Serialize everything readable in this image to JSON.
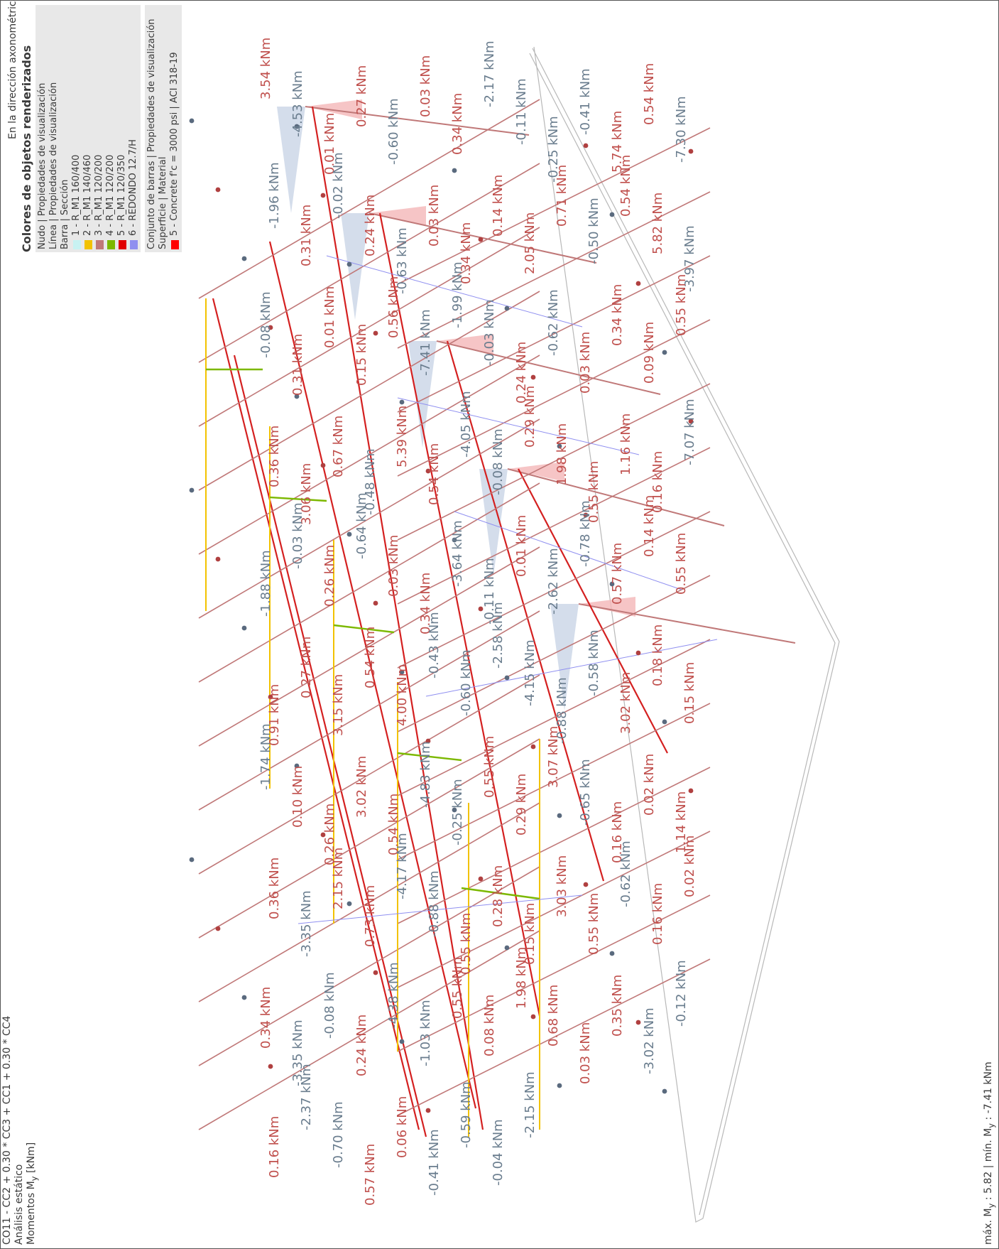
{
  "header": {
    "combination": "CO11 - CC2 + 0.30 * CC3 + CC1 + 0.30 * CC4",
    "analysis": "Análisis estático",
    "result": "Momentos M",
    "result_sub": "y",
    "result_unit": " [kNm]"
  },
  "view_caption": "En la dirección axonométrica",
  "summary": {
    "max_label": "máx. M",
    "sub": "y",
    "max_value": " : 5.82 | mín. M",
    "sub2": "y",
    "min_value": " : -7.41 kNm"
  },
  "legend": {
    "title": "Colores de objetos renderizados",
    "nudo": "Nudo | Propiedades de visualización",
    "linea": "Línea | Propiedades de visualización",
    "barra": "Barra | Sección",
    "sections": [
      {
        "label": "1 - R_M1 160/400",
        "color": "#c8f2f2"
      },
      {
        "label": "2 - R_M1 140/460",
        "color": "#f2c200"
      },
      {
        "label": "3 - R_M1 120/200",
        "color": "#c07878"
      },
      {
        "label": "4 - R_M1 120/200",
        "color": "#7cb800"
      },
      {
        "label": "5 - R_M1 120/350",
        "color": "#e00000"
      },
      {
        "label": "6 - REDONDO 12.7/H",
        "color": "#8f8ff0"
      }
    ],
    "conjunto": "Conjunto de barras | Propiedades de visualización",
    "superficie": "Superficie | Material",
    "materials": [
      {
        "label": "5 - Concrete f'c = 3000 psi | ACI 318-19",
        "color": "#ff0000"
      }
    ]
  },
  "colors": {
    "positive": "#c0504d",
    "negative": "#6a7d8e",
    "pos_fill": "#f4b6b8",
    "neg_fill": "#c9d4e6"
  },
  "labels": [
    {
      "text": "3.54 kNm",
      "sign": "pos"
    },
    {
      "text": "-4.53 kNm",
      "sign": "neg"
    },
    {
      "text": "0.01 kNm",
      "sign": "pos"
    },
    {
      "text": "0.27 kNm",
      "sign": "pos"
    },
    {
      "text": "-0.60 kNm",
      "sign": "neg"
    },
    {
      "text": "0.03 kNm",
      "sign": "pos"
    },
    {
      "text": "0.34 kNm",
      "sign": "pos"
    },
    {
      "text": "-2.17 kNm",
      "sign": "neg"
    },
    {
      "text": "-0.11 kNm",
      "sign": "neg"
    },
    {
      "text": "-0.25 kNm",
      "sign": "neg"
    },
    {
      "text": "-0.41 kNm",
      "sign": "neg"
    },
    {
      "text": "5.74 kNm",
      "sign": "pos"
    },
    {
      "text": "0.54 kNm",
      "sign": "pos"
    },
    {
      "text": "-7.30 kNm",
      "sign": "neg"
    },
    {
      "text": "-1.96 kNm",
      "sign": "neg"
    },
    {
      "text": "0.31 kNm",
      "sign": "pos"
    },
    {
      "text": "-0.02 kNm",
      "sign": "neg"
    },
    {
      "text": "0.24 kNm",
      "sign": "pos"
    },
    {
      "text": "-0.63 kNm",
      "sign": "neg"
    },
    {
      "text": "0.03 kNm",
      "sign": "pos"
    },
    {
      "text": "0.34 kNm",
      "sign": "pos"
    },
    {
      "text": "0.14 kNm",
      "sign": "pos"
    },
    {
      "text": "2.05 kNm",
      "sign": "pos"
    },
    {
      "text": "0.71 kNm",
      "sign": "pos"
    },
    {
      "text": "-0.50 kNm",
      "sign": "neg"
    },
    {
      "text": "0.54 kNm",
      "sign": "pos"
    },
    {
      "text": "5.82 kNm",
      "sign": "pos"
    },
    {
      "text": "-3.97 kNm",
      "sign": "neg"
    },
    {
      "text": "-0.08 kNm",
      "sign": "neg"
    },
    {
      "text": "0.31 kNm",
      "sign": "pos"
    },
    {
      "text": "0.01 kNm",
      "sign": "pos"
    },
    {
      "text": "0.15 kNm",
      "sign": "pos"
    },
    {
      "text": "0.56 kNm",
      "sign": "pos"
    },
    {
      "text": "-7.41 kNm",
      "sign": "neg"
    },
    {
      "text": "-1.99 kNm",
      "sign": "neg"
    },
    {
      "text": "-0.03 kNm",
      "sign": "neg"
    },
    {
      "text": "0.24 kNm",
      "sign": "pos"
    },
    {
      "text": "-0.62 kNm",
      "sign": "neg"
    },
    {
      "text": "0.03 kNm",
      "sign": "pos"
    },
    {
      "text": "0.34 kNm",
      "sign": "pos"
    },
    {
      "text": "0.09 kNm",
      "sign": "pos"
    },
    {
      "text": "0.55 kNm",
      "sign": "pos"
    },
    {
      "text": "0.36 kNm",
      "sign": "pos"
    },
    {
      "text": "3.06 kNm",
      "sign": "pos"
    },
    {
      "text": "0.67 kNm",
      "sign": "pos"
    },
    {
      "text": "-0.48 kNm",
      "sign": "neg"
    },
    {
      "text": "5.39 kNm",
      "sign": "pos"
    },
    {
      "text": "0.54 kNm",
      "sign": "pos"
    },
    {
      "text": "-4.05 kNm",
      "sign": "neg"
    },
    {
      "text": "-0.08 kNm",
      "sign": "neg"
    },
    {
      "text": "0.29 kNm",
      "sign": "pos"
    },
    {
      "text": "1.98 kNm",
      "sign": "pos"
    },
    {
      "text": "0.55 kNm",
      "sign": "pos"
    },
    {
      "text": "1.16 kNm",
      "sign": "pos"
    },
    {
      "text": "0.16 kNm",
      "sign": "pos"
    },
    {
      "text": "-7.07 kNm",
      "sign": "neg"
    },
    {
      "text": "-1.88 kNm",
      "sign": "neg"
    },
    {
      "text": "-0.03 kNm",
      "sign": "neg"
    },
    {
      "text": "0.26 kNm",
      "sign": "pos"
    },
    {
      "text": "-0.64 kNm",
      "sign": "neg"
    },
    {
      "text": "0.03 kNm",
      "sign": "pos"
    },
    {
      "text": "0.34 kNm",
      "sign": "pos"
    },
    {
      "text": "-3.64 kNm",
      "sign": "neg"
    },
    {
      "text": "-0.11 kNm",
      "sign": "neg"
    },
    {
      "text": "0.01 kNm",
      "sign": "pos"
    },
    {
      "text": "-2.62 kNm",
      "sign": "neg"
    },
    {
      "text": "-0.78 kNm",
      "sign": "neg"
    },
    {
      "text": "0.57 kNm",
      "sign": "pos"
    },
    {
      "text": "0.14 kNm",
      "sign": "pos"
    },
    {
      "text": "0.55 kNm",
      "sign": "pos"
    },
    {
      "text": "0.91 kNm",
      "sign": "pos"
    },
    {
      "text": "0.27 kNm",
      "sign": "pos"
    },
    {
      "text": "3.15 kNm",
      "sign": "pos"
    },
    {
      "text": "0.54 kNm",
      "sign": "pos"
    },
    {
      "text": "4.00 kNm",
      "sign": "pos"
    },
    {
      "text": "-0.43 kNm",
      "sign": "neg"
    },
    {
      "text": "-0.60 kNm",
      "sign": "neg"
    },
    {
      "text": "-2.58 kNm",
      "sign": "neg"
    },
    {
      "text": "-4.15 kNm",
      "sign": "neg"
    },
    {
      "text": "-0.88 kNm",
      "sign": "neg"
    },
    {
      "text": "-0.58 kNm",
      "sign": "neg"
    },
    {
      "text": "3.02 kNm",
      "sign": "pos"
    },
    {
      "text": "0.18 kNm",
      "sign": "pos"
    },
    {
      "text": "0.15 kNm",
      "sign": "pos"
    },
    {
      "text": "-1.74 kNm",
      "sign": "neg"
    },
    {
      "text": "0.10 kNm",
      "sign": "pos"
    },
    {
      "text": "0.26 kNm",
      "sign": "pos"
    },
    {
      "text": "3.02 kNm",
      "sign": "pos"
    },
    {
      "text": "0.54 kNm",
      "sign": "pos"
    },
    {
      "text": "-4.83 kNm",
      "sign": "neg"
    },
    {
      "text": "-0.25 kNm",
      "sign": "neg"
    },
    {
      "text": "0.55 kNm",
      "sign": "pos"
    },
    {
      "text": "0.29 kNm",
      "sign": "pos"
    },
    {
      "text": "3.07 kNm",
      "sign": "pos"
    },
    {
      "text": "-0.65 kNm",
      "sign": "neg"
    },
    {
      "text": "0.16 kNm",
      "sign": "pos"
    },
    {
      "text": "0.02 kNm",
      "sign": "pos"
    },
    {
      "text": "1.14 kNm",
      "sign": "pos"
    },
    {
      "text": "0.36 kNm",
      "sign": "pos"
    },
    {
      "text": "-3.35 kNm",
      "sign": "neg"
    },
    {
      "text": "2.15 kNm",
      "sign": "pos"
    },
    {
      "text": "0.73 kNm",
      "sign": "pos"
    },
    {
      "text": "-4.17 kNm",
      "sign": "neg"
    },
    {
      "text": "-0.88 kNm",
      "sign": "neg"
    },
    {
      "text": "0.55 kNm",
      "sign": "pos"
    },
    {
      "text": "0.28 kNm",
      "sign": "pos"
    },
    {
      "text": "0.15 kNm",
      "sign": "pos"
    },
    {
      "text": "3.03 kNm",
      "sign": "pos"
    },
    {
      "text": "0.55 kNm",
      "sign": "pos"
    },
    {
      "text": "-0.62 kNm",
      "sign": "neg"
    },
    {
      "text": "0.16 kNm",
      "sign": "pos"
    },
    {
      "text": "0.02 kNm",
      "sign": "pos"
    },
    {
      "text": "0.34 kNm",
      "sign": "pos"
    },
    {
      "text": "-3.35 kNm",
      "sign": "neg"
    },
    {
      "text": "-0.08 kNm",
      "sign": "neg"
    },
    {
      "text": "0.24 kNm",
      "sign": "pos"
    },
    {
      "text": "-4.38 kNm",
      "sign": "neg"
    },
    {
      "text": "-1.03 kNm",
      "sign": "neg"
    },
    {
      "text": "0.55 kNm",
      "sign": "pos"
    },
    {
      "text": "0.08 kNm",
      "sign": "pos"
    },
    {
      "text": "1.98 kNm",
      "sign": "pos"
    },
    {
      "text": "0.68 kNm",
      "sign": "pos"
    },
    {
      "text": "0.03 kNm",
      "sign": "pos"
    },
    {
      "text": "0.35 kNm",
      "sign": "pos"
    },
    {
      "text": "-3.02 kNm",
      "sign": "neg"
    },
    {
      "text": "-0.12 kNm",
      "sign": "neg"
    },
    {
      "text": "0.16 kNm",
      "sign": "pos"
    },
    {
      "text": "-2.37 kNm",
      "sign": "neg"
    },
    {
      "text": "-0.70 kNm",
      "sign": "neg"
    },
    {
      "text": "0.57 kNm",
      "sign": "pos"
    },
    {
      "text": "0.06 kNm",
      "sign": "pos"
    },
    {
      "text": "-0.41 kNm",
      "sign": "neg"
    },
    {
      "text": "-0.59 kNm",
      "sign": "neg"
    },
    {
      "text": "-0.04 kNm",
      "sign": "neg"
    },
    {
      "text": "-2.15 kNm",
      "sign": "neg"
    }
  ]
}
